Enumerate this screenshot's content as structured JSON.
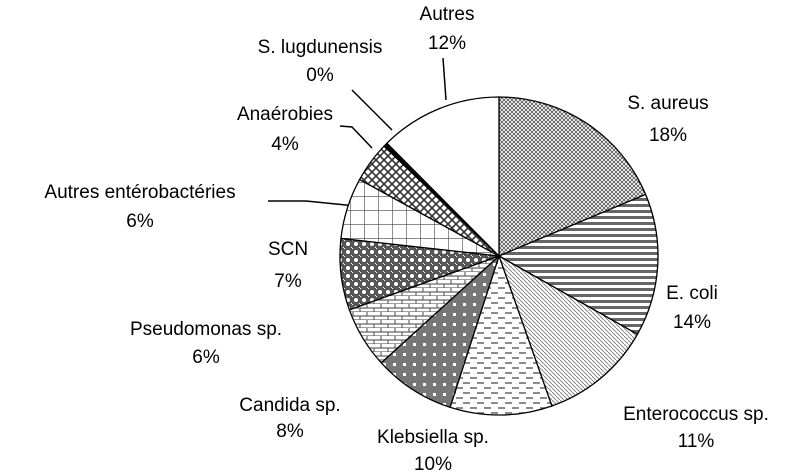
{
  "chart_data": {
    "type": "pie",
    "categories": [
      "S. aureus",
      "E. coli",
      "Enterococcus sp.",
      "Klebsiella sp.",
      "Candida sp.",
      "Pseudomonas sp.",
      "SCN",
      "Autres entérobactéries",
      "Anaérobies",
      "S. lugdunensis",
      "Autres"
    ],
    "values": [
      18,
      14,
      11,
      10,
      8,
      6,
      7,
      6,
      4,
      0.4,
      12
    ],
    "value_labels": [
      "18%",
      "14%",
      "11%",
      "10%",
      "8%",
      "6%",
      "7%",
      "6%",
      "4%",
      "0%",
      "12%"
    ]
  }
}
